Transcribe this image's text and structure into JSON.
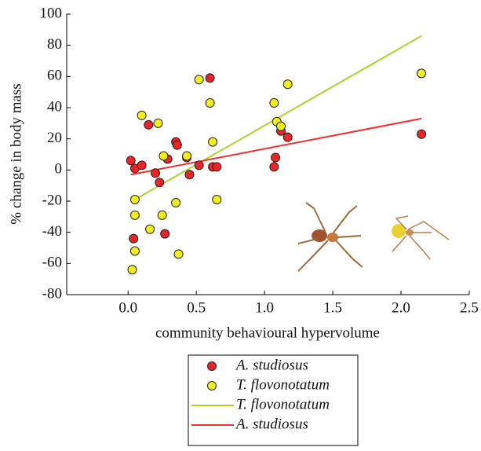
{
  "chart_data": {
    "type": "scatter",
    "xlabel": "community behavioural hypervolume",
    "ylabel": "% change in body mass",
    "xlim": [
      -0.45,
      2.5
    ],
    "ylim": [
      -80,
      100
    ],
    "xticks": [
      {
        "value": 0,
        "label": "0.0"
      },
      0.5,
      {
        "value": 1,
        "label": "1.0"
      },
      1.5,
      {
        "value": 2,
        "label": "2.0"
      },
      2.5
    ],
    "yticks": [
      -80,
      -60,
      -40,
      -20,
      0,
      20,
      40,
      60,
      80,
      100
    ],
    "series": [
      {
        "name": "A. studiosus",
        "type": "scatter",
        "color": "#e8262a",
        "x": [
          0.02,
          0.05,
          0.1,
          0.15,
          0.2,
          0.23,
          0.29,
          0.35,
          0.36,
          0.43,
          0.45,
          0.52,
          0.6,
          0.62,
          0.65,
          0.27,
          0.04,
          1.07,
          1.08,
          1.12,
          1.17,
          2.15
        ],
        "values": [
          6,
          1,
          3,
          29,
          -2,
          -8,
          7,
          18,
          16,
          8,
          -3,
          3,
          59,
          2,
          2,
          -41,
          -44,
          2,
          8,
          25,
          21,
          23
        ]
      },
      {
        "name": "T. flovonotatum",
        "type": "scatter",
        "color": "#f2ee1e",
        "x": [
          0.1,
          0.22,
          0.26,
          0.25,
          0.05,
          0.05,
          0.05,
          0.03,
          0.16,
          0.35,
          0.37,
          0.43,
          0.52,
          0.6,
          0.62,
          0.65,
          1.07,
          1.09,
          1.12,
          1.17,
          2.15
        ],
        "values": [
          35,
          30,
          9,
          -29,
          -19,
          -29,
          -52,
          -64,
          -38,
          -21,
          -54,
          9,
          58,
          43,
          18,
          -19,
          43,
          31,
          28,
          55,
          62
        ]
      },
      {
        "name": "T. flovonotatum",
        "type": "line",
        "color": "#a8d42a",
        "x": [
          0.05,
          2.15
        ],
        "values": [
          -19,
          86
        ]
      },
      {
        "name": "A. studiosus",
        "type": "line",
        "color": "#f0302f",
        "x": [
          0.02,
          2.15
        ],
        "values": [
          -3,
          33
        ]
      }
    ]
  }
}
